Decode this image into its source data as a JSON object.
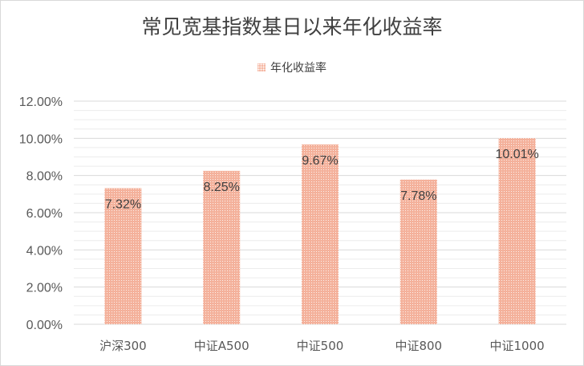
{
  "chart_data": {
    "type": "bar",
    "title": "常见宽基指数基日以来年化收益率",
    "categories": [
      "沪深300",
      "中证A500",
      "中证500",
      "中证800",
      "中证1000"
    ],
    "series": [
      {
        "name": "年化收益率",
        "values": [
          7.32,
          8.25,
          9.67,
          7.78,
          10.01
        ]
      }
    ],
    "data_labels": [
      "7.32%",
      "8.25%",
      "9.67%",
      "7.78%",
      "10.01%"
    ],
    "y_ticks": [
      "0.00%",
      "2.00%",
      "4.00%",
      "6.00%",
      "8.00%",
      "10.00%",
      "12.00%"
    ],
    "ylim": [
      0,
      12
    ],
    "grid": true,
    "legend_position": "top",
    "bar_color": "#f4b19b",
    "grid_color": "#d9d9d9"
  }
}
